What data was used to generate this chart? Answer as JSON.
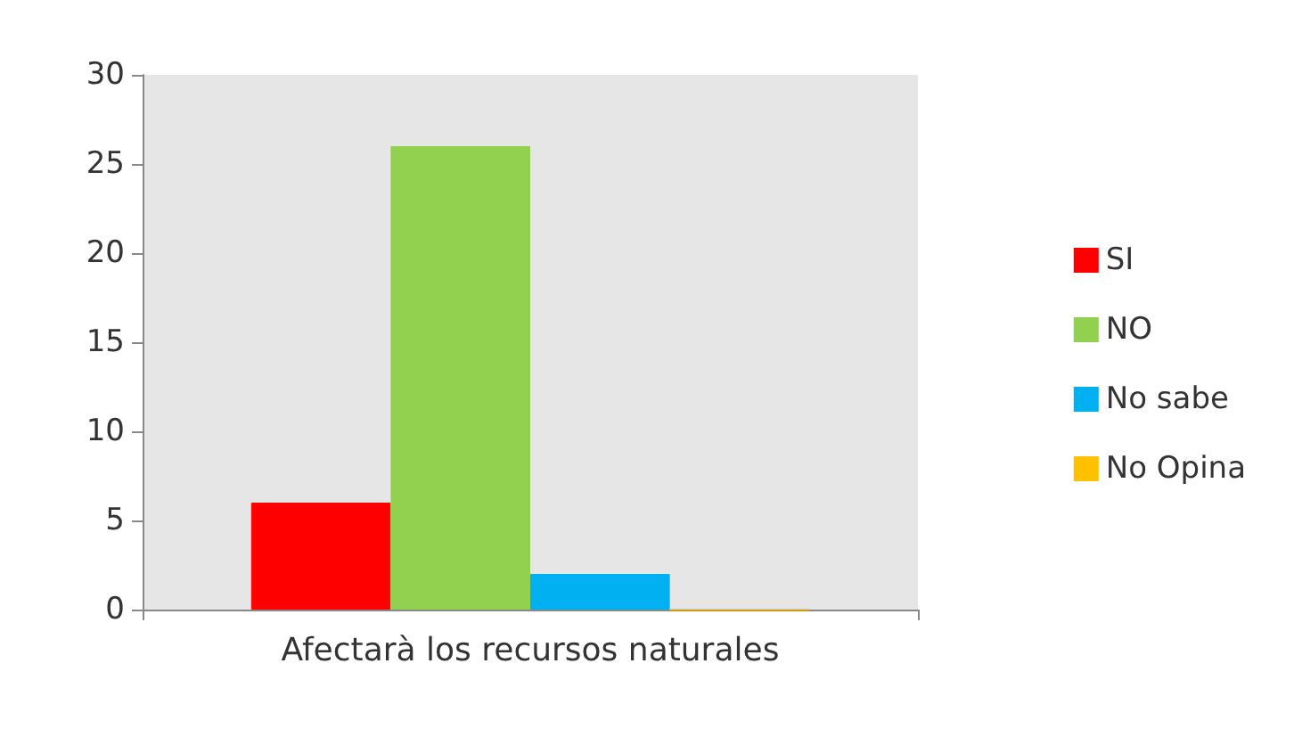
{
  "chart_data": {
    "type": "bar",
    "categories": [
      "Afectarà los recursos naturales"
    ],
    "series": [
      {
        "name": "SI",
        "color": "#ff0000",
        "values": [
          6
        ]
      },
      {
        "name": "NO",
        "color": "#92d050",
        "values": [
          26
        ]
      },
      {
        "name": "No sabe",
        "color": "#00b0f0",
        "values": [
          2
        ]
      },
      {
        "name": "No Opina",
        "color": "#ffc000",
        "values": [
          0
        ]
      }
    ],
    "ylim": [
      0,
      30
    ],
    "yticks": [
      0,
      5,
      10,
      15,
      20,
      25,
      30
    ],
    "grid": false,
    "legend": "right"
  }
}
